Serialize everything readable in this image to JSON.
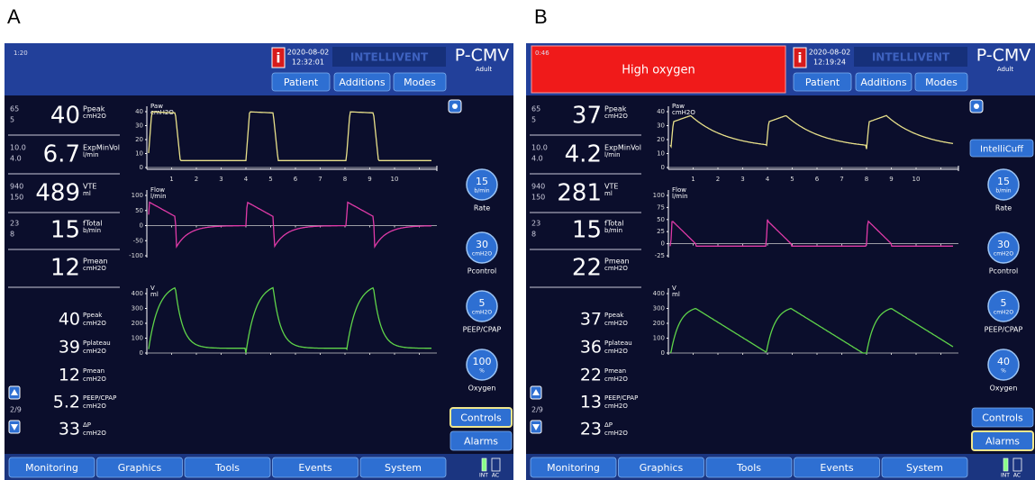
{
  "panels": [
    {
      "label": "A",
      "alarm_timer": "1:20",
      "info_icon": "i",
      "date": "2020-08-02",
      "time": "12:32:01",
      "brand": "INTELLIVENT",
      "mode": "P-CMV",
      "mode_detail": "Adult",
      "top_buttons": [
        "Patient",
        "Additions",
        "Modes"
      ],
      "rows": [
        {
          "high": "65",
          "low": "5",
          "value": "40",
          "name": "Ppeak",
          "unit": "cmH2O"
        },
        {
          "high": "10.0",
          "low": "4.0",
          "value": "6.7",
          "name": "ExpMinVol",
          "unit": "l/min"
        },
        {
          "high": "940",
          "low": "150",
          "value": "489",
          "name": "VTE",
          "unit": "ml"
        },
        {
          "high": "23",
          "low": "8",
          "value": "15",
          "name": "fTotal",
          "unit": "b/min"
        },
        {
          "value": "12",
          "name": "Pmean",
          "unit": "cmH2O"
        }
      ],
      "secondary": [
        {
          "value": "40",
          "name": "Ppeak",
          "unit": "cmH2O"
        },
        {
          "value": "39",
          "name": "Pplateau",
          "unit": "cmH2O"
        },
        {
          "value": "12",
          "name": "Pmean",
          "unit": "cmH2O"
        },
        {
          "value": "5.2",
          "name": "PEEP/CPAP",
          "unit": "cmH2O"
        },
        {
          "value": "33",
          "name": "ΔP",
          "unit": "cmH2O"
        }
      ],
      "page": "2/9",
      "graphs": [
        {
          "name": "Paw",
          "unit": "cmH2O",
          "yticks": [
            "40",
            "30",
            "20",
            "10",
            "0"
          ]
        },
        {
          "name": "Flow",
          "unit": "l/min",
          "yticks": [
            "100",
            "50",
            "0",
            "-50",
            "-100"
          ]
        },
        {
          "name": "V",
          "unit": "ml",
          "yticks": [
            "400",
            "300",
            "200",
            "100",
            "0"
          ]
        }
      ],
      "time_ticks": [
        "1",
        "2",
        "3",
        "4",
        "5",
        "6",
        "7",
        "8",
        "9",
        "10"
      ],
      "controls": [
        {
          "value": "15",
          "unit": "b/min",
          "name": "Rate"
        },
        {
          "value": "30",
          "unit": "cmH2O",
          "name": "Pcontrol"
        },
        {
          "value": "5",
          "unit": "cmH2O",
          "name": "PEEP/CPAP"
        },
        {
          "value": "100",
          "unit": "%",
          "name": "Oxygen"
        }
      ],
      "side_buttons": [
        "Controls",
        "Alarms"
      ],
      "tabs": [
        "Monitoring",
        "Graphics",
        "Tools",
        "Events",
        "System"
      ],
      "power": [
        "INT",
        "AC"
      ]
    },
    {
      "label": "B",
      "alarm_timer": "0:46",
      "alarm_message": "High oxygen",
      "info_icon": "i",
      "date": "2020-08-02",
      "time": "12:19:24",
      "brand": "INTELLIVENT",
      "mode": "P-CMV",
      "mode_detail": "Adult",
      "top_buttons": [
        "Patient",
        "Additions",
        "Modes"
      ],
      "rows": [
        {
          "high": "65",
          "low": "5",
          "value": "37",
          "name": "Ppeak",
          "unit": "cmH2O"
        },
        {
          "high": "10.0",
          "low": "4.0",
          "value": "4.2",
          "name": "ExpMinVol",
          "unit": "l/min"
        },
        {
          "high": "940",
          "low": "150",
          "value": "281",
          "name": "VTE",
          "unit": "ml"
        },
        {
          "high": "23",
          "low": "8",
          "value": "15",
          "name": "fTotal",
          "unit": "b/min"
        },
        {
          "value": "22",
          "name": "Pmean",
          "unit": "cmH2O"
        }
      ],
      "secondary": [
        {
          "value": "37",
          "name": "Ppeak",
          "unit": "cmH2O"
        },
        {
          "value": "36",
          "name": "Pplateau",
          "unit": "cmH2O"
        },
        {
          "value": "22",
          "name": "Pmean",
          "unit": "cmH2O"
        },
        {
          "value": "13",
          "name": "PEEP/CPAP",
          "unit": "cmH2O"
        },
        {
          "value": "23",
          "name": "ΔP",
          "unit": "cmH2O"
        }
      ],
      "page": "2/9",
      "graphs": [
        {
          "name": "Paw",
          "unit": "cmH2O",
          "yticks": [
            "40",
            "30",
            "20",
            "10",
            "0"
          ]
        },
        {
          "name": "Flow",
          "unit": "l/min",
          "yticks": [
            "100",
            "75",
            "50",
            "25",
            "0",
            "-25"
          ]
        },
        {
          "name": "V",
          "unit": "ml",
          "yticks": [
            "400",
            "300",
            "200",
            "100",
            "0"
          ]
        }
      ],
      "time_ticks": [
        "1",
        "2",
        "3",
        "4",
        "5",
        "6",
        "7",
        "8",
        "9",
        "10"
      ],
      "intellicuff": "IntelliCuff",
      "controls": [
        {
          "value": "15",
          "unit": "b/min",
          "name": "Rate"
        },
        {
          "value": "30",
          "unit": "cmH2O",
          "name": "Pcontrol"
        },
        {
          "value": "5",
          "unit": "cmH2O",
          "name": "PEEP/CPAP"
        },
        {
          "value": "40",
          "unit": "%",
          "name": "Oxygen"
        }
      ],
      "side_buttons": [
        "Controls",
        "Alarms"
      ],
      "tabs": [
        "Monitoring",
        "Graphics",
        "Tools",
        "Events",
        "System"
      ],
      "power": [
        "INT",
        "AC"
      ]
    }
  ]
}
